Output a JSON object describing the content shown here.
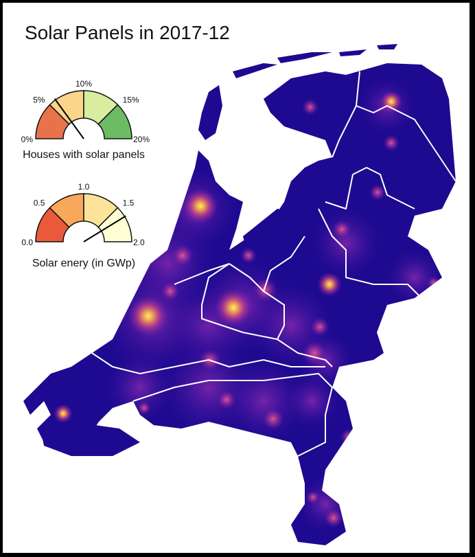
{
  "title": "Solar Panels in 2017-12",
  "colors": {
    "background": "#ffffff",
    "frame": "#000000",
    "sea_bg": "#ffffff",
    "land_base": "#1a0a8c",
    "province_border": "#ffffff",
    "hotspot_core": "#ffe45a",
    "hotspot_mid": "#e05a8a",
    "hotspot_outer": "#7a1fb0"
  },
  "gauges": [
    {
      "id": "houses",
      "caption": "Houses with solar panels",
      "value": 6,
      "min": 0,
      "max": 20,
      "ticks": [
        "0%",
        "5%",
        "10%",
        "15%",
        "20%"
      ],
      "segment_colors": [
        "#e8734a",
        "#fad58b",
        "#d8eda0",
        "#6dbb65"
      ]
    },
    {
      "id": "energy",
      "caption": "Solar enery (in GWp)",
      "value": 1.65,
      "min": 0,
      "max": 2,
      "ticks": [
        "0.0",
        "0.5",
        "1.0",
        "1.5",
        "2.0"
      ],
      "segment_colors": [
        "#ea5a3a",
        "#f7a85a",
        "#fde39a",
        "#ffffd4"
      ]
    }
  ]
}
